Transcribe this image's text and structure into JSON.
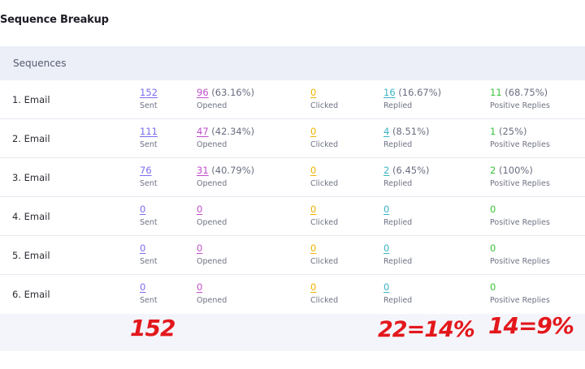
{
  "title": "Sequence Breakup",
  "table": {
    "header": "Sequences",
    "labels": {
      "sent": "Sent",
      "opened": "Opened",
      "clicked": "Clicked",
      "replied": "Replied",
      "positive": "Positive Replies"
    },
    "rows": [
      {
        "name": "1. Email",
        "sent": "152",
        "opened": "96",
        "opened_pct": "(63.16%)",
        "clicked": "0",
        "replied": "16",
        "replied_pct": "(16.67%)",
        "positive": "11",
        "positive_pct": "(68.75%)"
      },
      {
        "name": "2. Email",
        "sent": "111",
        "opened": "47",
        "opened_pct": "(42.34%)",
        "clicked": "0",
        "replied": "4",
        "replied_pct": "(8.51%)",
        "positive": "1",
        "positive_pct": "(25%)"
      },
      {
        "name": "3. Email",
        "sent": "76",
        "opened": "31",
        "opened_pct": "(40.79%)",
        "clicked": "0",
        "replied": "2",
        "replied_pct": "(6.45%)",
        "positive": "2",
        "positive_pct": "(100%)"
      },
      {
        "name": "4. Email",
        "sent": "0",
        "opened": "0",
        "opened_pct": "",
        "clicked": "0",
        "replied": "0",
        "replied_pct": "",
        "positive": "0",
        "positive_pct": ""
      },
      {
        "name": "5. Email",
        "sent": "0",
        "opened": "0",
        "opened_pct": "",
        "clicked": "0",
        "replied": "0",
        "replied_pct": "",
        "positive": "0",
        "positive_pct": ""
      },
      {
        "name": "6. Email",
        "sent": "0",
        "opened": "0",
        "opened_pct": "",
        "clicked": "0",
        "replied": "0",
        "replied_pct": "",
        "positive": "0",
        "positive_pct": ""
      }
    ]
  },
  "annotations": {
    "sent_total": "152",
    "replied_note": "22=14%",
    "positive_note": "14=9%"
  },
  "colors": {
    "sent": "#7b6cf0",
    "opened": "#c14fcc",
    "clicked": "#f0b100",
    "replied": "#3ab3c4",
    "positive": "#3bc43b",
    "annotation": "#e3181c"
  }
}
